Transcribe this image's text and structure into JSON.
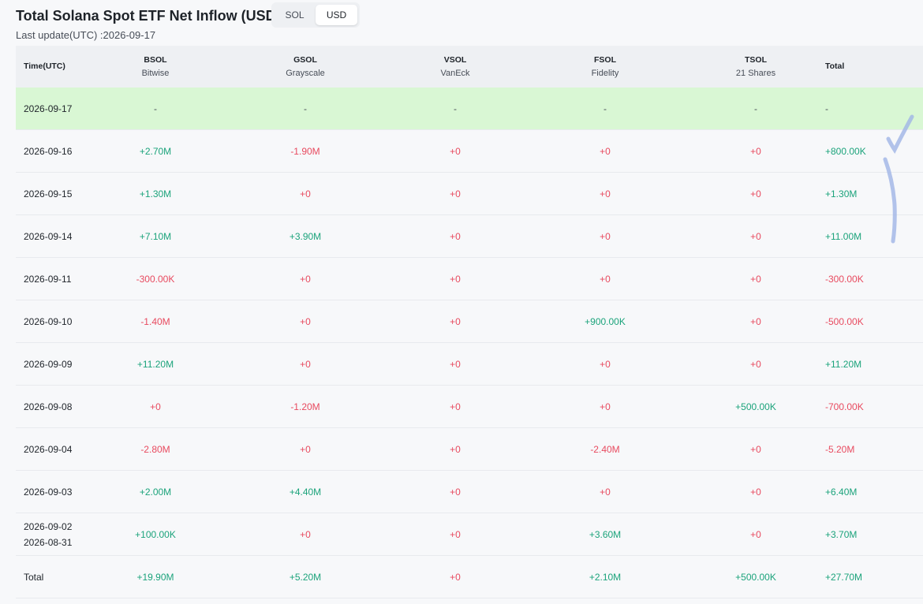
{
  "header": {
    "title": "Total Solana Spot ETF Net Inflow (USD)",
    "toggle": [
      "SOL",
      "USD"
    ],
    "toggle_active": "USD",
    "last_update": "Last update(UTC) :2026-09-17"
  },
  "table": {
    "columns": [
      {
        "symbol": "Time(UTC)",
        "issuer": ""
      },
      {
        "symbol": "BSOL",
        "issuer": "Bitwise"
      },
      {
        "symbol": "GSOL",
        "issuer": "Grayscale"
      },
      {
        "symbol": "VSOL",
        "issuer": "VanEck"
      },
      {
        "symbol": "FSOL",
        "issuer": "Fidelity"
      },
      {
        "symbol": "TSOL",
        "issuer": "21 Shares"
      },
      {
        "symbol": "Total",
        "issuer": ""
      }
    ],
    "rows": [
      {
        "date": "2026-09-17",
        "values": [
          "-",
          "-",
          "-",
          "-",
          "-",
          "-"
        ],
        "highlight": true
      },
      {
        "date": "2026-09-16",
        "values": [
          "+2.70M",
          "-1.90M",
          "+0",
          "+0",
          "+0",
          "+800.00K"
        ]
      },
      {
        "date": "2026-09-15",
        "values": [
          "+1.30M",
          "+0",
          "+0",
          "+0",
          "+0",
          "+1.30M"
        ]
      },
      {
        "date": "2026-09-14",
        "values": [
          "+7.10M",
          "+3.90M",
          "+0",
          "+0",
          "+0",
          "+11.00M"
        ]
      },
      {
        "date": "2026-09-11",
        "values": [
          "-300.00K",
          "+0",
          "+0",
          "+0",
          "+0",
          "-300.00K"
        ]
      },
      {
        "date": "2026-09-10",
        "values": [
          "-1.40M",
          "+0",
          "+0",
          "+900.00K",
          "+0",
          "-500.00K"
        ]
      },
      {
        "date": "2026-09-09",
        "values": [
          "+11.20M",
          "+0",
          "+0",
          "+0",
          "+0",
          "+11.20M"
        ]
      },
      {
        "date": "2026-09-08",
        "values": [
          "+0",
          "-1.20M",
          "+0",
          "+0",
          "+500.00K",
          "-700.00K"
        ]
      },
      {
        "date": "2026-09-04",
        "values": [
          "-2.80M",
          "+0",
          "+0",
          "-2.40M",
          "+0",
          "-5.20M"
        ]
      },
      {
        "date": "2026-09-03",
        "values": [
          "+2.00M",
          "+4.40M",
          "+0",
          "+0",
          "+0",
          "+6.40M"
        ]
      },
      {
        "date": "2026-09-02",
        "date2": "2026-08-31",
        "values": [
          "+100.00K",
          "+0",
          "+0",
          "+3.60M",
          "+0",
          "+3.70M"
        ]
      },
      {
        "date": "Total",
        "values": [
          "+19.90M",
          "+5.20M",
          "+0",
          "+2.10M",
          "+500.00K",
          "+27.70M"
        ]
      }
    ],
    "value_colors": [
      [
        "dash",
        "dash",
        "dash",
        "dash",
        "dash",
        "dash"
      ],
      [
        "pos",
        "neg",
        "neg",
        "neg",
        "neg",
        "pos"
      ],
      [
        "pos",
        "neg",
        "neg",
        "neg",
        "neg",
        "pos"
      ],
      [
        "pos",
        "pos",
        "neg",
        "neg",
        "neg",
        "pos"
      ],
      [
        "neg",
        "neg",
        "neg",
        "neg",
        "neg",
        "neg"
      ],
      [
        "neg",
        "neg",
        "neg",
        "pos",
        "neg",
        "neg"
      ],
      [
        "pos",
        "neg",
        "neg",
        "neg",
        "neg",
        "pos"
      ],
      [
        "neg",
        "neg",
        "neg",
        "neg",
        "pos",
        "neg"
      ],
      [
        "neg",
        "neg",
        "neg",
        "neg",
        "neg",
        "neg"
      ],
      [
        "pos",
        "pos",
        "neg",
        "neg",
        "neg",
        "pos"
      ],
      [
        "pos",
        "neg",
        "neg",
        "pos",
        "neg",
        "pos"
      ],
      [
        "pos",
        "pos",
        "neg",
        "pos",
        "pos",
        "pos"
      ]
    ]
  },
  "colors": {
    "positive": "#1ba37b",
    "negative": "#e84a5f",
    "highlight_row": "#d9f7d4",
    "header_bg": "#eef0f3",
    "annotation_stroke": "#9fb4e6"
  }
}
